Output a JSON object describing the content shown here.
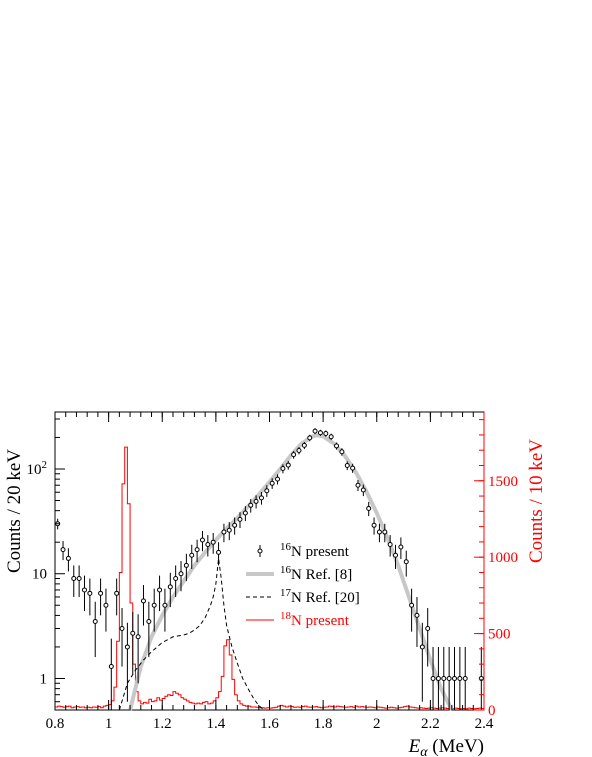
{
  "chart_data": {
    "type": "scatter",
    "xlabel": "E_α (MeV)",
    "ylabel_left": "Counts / 20 keV",
    "ylabel_right": "Counts / 10 keV",
    "xlim": [
      0.8,
      2.4
    ],
    "ylim_left": [
      0.5,
      350
    ],
    "yscale_left": "log",
    "ylim_right": [
      0,
      1950
    ],
    "yscale_right": "linear",
    "x_ticks": [
      "0.8",
      "1",
      "1.2",
      "1.4",
      "1.6",
      "1.8",
      "2",
      "2.2",
      "2.4"
    ],
    "y_ticks_left": [
      "1",
      "10",
      "10^2"
    ],
    "y_ticks_right": [
      "0",
      "500",
      "1000",
      "1500"
    ],
    "colors": {
      "axis": "#000000",
      "right_axis": "#ff0000",
      "ref8": "#c8c8c8",
      "n18": "#ff0000"
    },
    "legend_position": "center",
    "legend": [
      {
        "sup": "16",
        "label": "N present"
      },
      {
        "sup": "16",
        "label": "N Ref. [8]"
      },
      {
        "sup": "17",
        "label": "N Ref. [20]"
      },
      {
        "sup": "18",
        "label": "N present"
      }
    ],
    "series": [
      {
        "name": "16N present",
        "style": "points-with-errors",
        "axis": "left",
        "points": [
          [
            0.81,
            30.0,
            3.5
          ],
          [
            0.83,
            17.0,
            3.5
          ],
          [
            0.85,
            14.0,
            3.5
          ],
          [
            0.87,
            9.0,
            3.0
          ],
          [
            0.89,
            9.0,
            3.0
          ],
          [
            0.91,
            7.0,
            2.6
          ],
          [
            0.93,
            6.5,
            2.5
          ],
          [
            0.95,
            3.5,
            1.9
          ],
          [
            0.97,
            6.5,
            2.5
          ],
          [
            0.99,
            5.0,
            2.2
          ],
          [
            1.01,
            1.3,
            1.1
          ],
          [
            1.03,
            6.5,
            2.5
          ],
          [
            1.05,
            3.0,
            1.7
          ],
          [
            1.07,
            2.0,
            1.4
          ],
          [
            1.09,
            2.7,
            1.6
          ],
          [
            1.11,
            2.5,
            1.6
          ],
          [
            1.13,
            5.5,
            2.3
          ],
          [
            1.15,
            3.5,
            1.9
          ],
          [
            1.17,
            5.0,
            2.2
          ],
          [
            1.19,
            7.0,
            2.6
          ],
          [
            1.21,
            5.0,
            2.2
          ],
          [
            1.23,
            7.5,
            2.7
          ],
          [
            1.25,
            9.0,
            3.0
          ],
          [
            1.27,
            10.0,
            3.2
          ],
          [
            1.29,
            12.0,
            3.5
          ],
          [
            1.31,
            15.0,
            3.9
          ],
          [
            1.33,
            17.0,
            4.1
          ],
          [
            1.35,
            21.0,
            4.6
          ],
          [
            1.37,
            19.0,
            4.4
          ],
          [
            1.39,
            20.0,
            4.5
          ],
          [
            1.41,
            16.0,
            4.0
          ],
          [
            1.43,
            25.0,
            5.0
          ],
          [
            1.45,
            26.0,
            5.1
          ],
          [
            1.47,
            29.0,
            5.4
          ],
          [
            1.49,
            33.0,
            5.7
          ],
          [
            1.51,
            38.0,
            6.2
          ],
          [
            1.53,
            45.0,
            6.7
          ],
          [
            1.55,
            49.0,
            7.0
          ],
          [
            1.57,
            53.0,
            7.3
          ],
          [
            1.59,
            62.0,
            7.9
          ],
          [
            1.61,
            73.0,
            8.5
          ],
          [
            1.63,
            80.0,
            8.9
          ],
          [
            1.65,
            101.0,
            10.0
          ],
          [
            1.67,
            109.0,
            10.4
          ],
          [
            1.69,
            137.0,
            11.7
          ],
          [
            1.71,
            150.0,
            12.2
          ],
          [
            1.73,
            168.0,
            13.0
          ],
          [
            1.75,
            198.0,
            14.1
          ],
          [
            1.77,
            230.0,
            15.2
          ],
          [
            1.79,
            222.0,
            14.9
          ],
          [
            1.81,
            218.0,
            14.8
          ],
          [
            1.83,
            203.0,
            14.2
          ],
          [
            1.85,
            166.0,
            12.9
          ],
          [
            1.87,
            146.0,
            12.1
          ],
          [
            1.89,
            108.0,
            10.4
          ],
          [
            1.91,
            102.0,
            10.1
          ],
          [
            1.93,
            70.0,
            8.4
          ],
          [
            1.95,
            63.0,
            7.9
          ],
          [
            1.97,
            42.0,
            6.5
          ],
          [
            1.99,
            29.0,
            5.4
          ],
          [
            2.01,
            25.0,
            5.0
          ],
          [
            2.03,
            25.0,
            5.0
          ],
          [
            2.05,
            19.0,
            4.4
          ],
          [
            2.07,
            15.0,
            3.9
          ],
          [
            2.09,
            18.0,
            4.2
          ],
          [
            2.11,
            13.0,
            3.6
          ],
          [
            2.13,
            5.0,
            2.2
          ],
          [
            2.15,
            4.0,
            2.0
          ],
          [
            2.17,
            2.0,
            1.4
          ],
          [
            2.19,
            3.0,
            1.7
          ],
          [
            2.21,
            1.0,
            1.0
          ],
          [
            2.23,
            1.0,
            1.0
          ],
          [
            2.25,
            1.0,
            1.0
          ],
          [
            2.27,
            1.0,
            1.0
          ],
          [
            2.29,
            1.0,
            1.0
          ],
          [
            2.31,
            1.0,
            1.0
          ],
          [
            2.33,
            1.0,
            1.0
          ],
          [
            2.39,
            1.0,
            1.0
          ]
        ]
      },
      {
        "name": "16N Ref. [8]",
        "style": "thick-line",
        "axis": "left",
        "x": [
          1.08,
          1.12,
          1.16,
          1.2,
          1.24,
          1.28,
          1.32,
          1.36,
          1.4,
          1.44,
          1.48,
          1.52,
          1.56,
          1.6,
          1.64,
          1.68,
          1.72,
          1.76,
          1.78,
          1.8,
          1.84,
          1.88,
          1.92,
          1.96,
          2.0,
          2.04,
          2.08,
          2.12,
          2.16,
          2.2,
          2.24,
          2.28
        ],
        "y": [
          0.5,
          1.3,
          2.5,
          4.0,
          6.0,
          8.5,
          12.0,
          16.0,
          21.0,
          27.0,
          34.0,
          44.0,
          57.0,
          75.0,
          100.0,
          135.0,
          175.0,
          205.0,
          210.0,
          205.0,
          175.0,
          135.0,
          95.0,
          62.0,
          38.0,
          22.0,
          12.0,
          6.0,
          3.0,
          1.5,
          0.8,
          0.5
        ]
      },
      {
        "name": "17N Ref. [20]",
        "style": "dashed-line",
        "axis": "left",
        "x": [
          1.04,
          1.07,
          1.1,
          1.13,
          1.16,
          1.2,
          1.24,
          1.28,
          1.3,
          1.32,
          1.34,
          1.36,
          1.38,
          1.39,
          1.4,
          1.41,
          1.42,
          1.43,
          1.44,
          1.46,
          1.48,
          1.5,
          1.52,
          1.54,
          1.56,
          1.58
        ],
        "y": [
          0.5,
          0.9,
          1.2,
          1.5,
          1.8,
          2.2,
          2.5,
          2.6,
          2.7,
          2.9,
          3.2,
          3.8,
          5.0,
          6.0,
          8.0,
          14.0,
          9.0,
          5.0,
          3.2,
          2.0,
          1.4,
          1.0,
          0.8,
          0.65,
          0.55,
          0.5
        ]
      },
      {
        "name": "18N present",
        "style": "histogram",
        "axis": "right",
        "bin_width": 0.01,
        "bins_start": 0.8,
        "values": [
          20,
          25,
          22,
          18,
          22,
          25,
          15,
          20,
          22,
          18,
          20,
          15,
          18,
          15,
          20,
          18,
          22,
          15,
          25,
          30,
          35,
          60,
          150,
          450,
          900,
          1480,
          1720,
          1350,
          700,
          300,
          120,
          60,
          40,
          50,
          45,
          70,
          55,
          60,
          80,
          65,
          75,
          90,
          100,
          95,
          120,
          110,
          100,
          80,
          70,
          60,
          50,
          45,
          40,
          45,
          40,
          50,
          55,
          40,
          45,
          60,
          80,
          120,
          220,
          420,
          460,
          360,
          200,
          100,
          60,
          40,
          30,
          25,
          25,
          20,
          20,
          18,
          15,
          15,
          12,
          15,
          12,
          15,
          18,
          25,
          30,
          25,
          20,
          25,
          22,
          18,
          20,
          18,
          22,
          25,
          20,
          18,
          20,
          22,
          18,
          15,
          18,
          20,
          25,
          22,
          20,
          25,
          22,
          20,
          18,
          20,
          22,
          18,
          25,
          20,
          22,
          20,
          18,
          20,
          18,
          15,
          20,
          18,
          15,
          12,
          15,
          18,
          15,
          12,
          15,
          18,
          22,
          25,
          20,
          18,
          15,
          12,
          15,
          12,
          10,
          12,
          15,
          12,
          10,
          12,
          15,
          12,
          10,
          8,
          10,
          12,
          10,
          8,
          10,
          8,
          12,
          10,
          8,
          10,
          12,
          10
        ]
      }
    ]
  }
}
